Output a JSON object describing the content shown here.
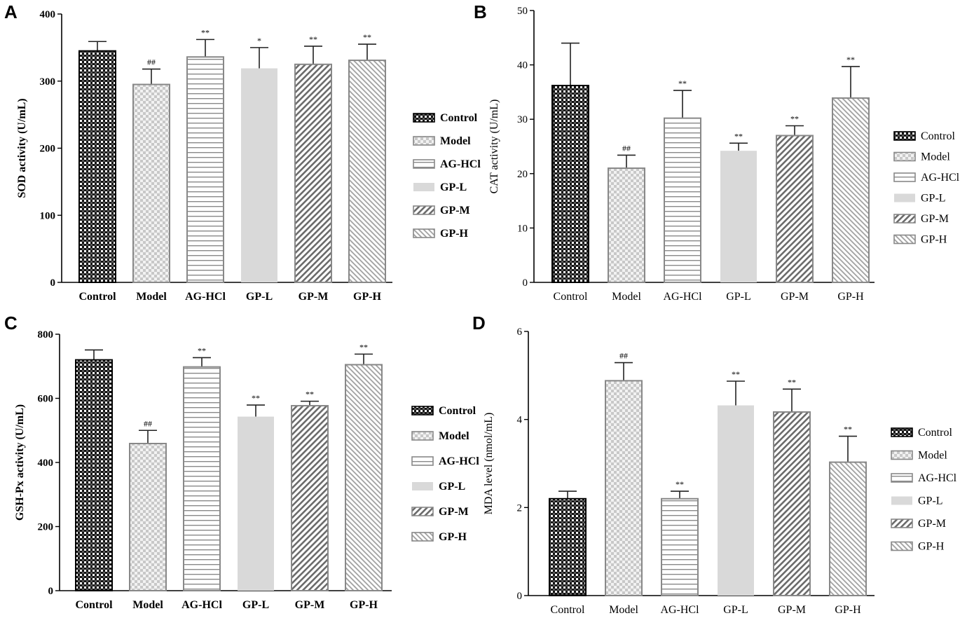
{
  "colors": {
    "Control": "#1a1a1a",
    "Model": "#a8a8a8",
    "AG-HCl": "#9a9a9a",
    "GP-L": "#d9d9d9",
    "GP-M": "#7a7a7a",
    "GP-H": "#b5b5b5"
  },
  "chart_data": [
    {
      "type": "bar",
      "panel": "A",
      "categories": [
        "Control",
        "Model",
        "AG-HCl",
        "GP-L",
        "GP-M",
        "GP-H"
      ],
      "values": [
        345,
        295,
        336,
        319,
        325,
        331
      ],
      "errors": [
        14,
        23,
        26,
        31,
        27,
        24
      ],
      "annotations": [
        "",
        "##",
        "**",
        "*",
        "**",
        "**"
      ],
      "ylabel": "SOD activity (U/mL)",
      "ylim": [
        0,
        400
      ],
      "yticks": [
        0,
        100,
        200,
        300,
        400
      ],
      "legend": [
        "Control",
        "Model",
        "AG-HCl",
        "GP-L",
        "GP-M",
        "GP-H"
      ],
      "bold_labels": true
    },
    {
      "type": "bar",
      "panel": "B",
      "categories": [
        "Control",
        "Model",
        "AG-HCl",
        "GP-L",
        "GP-M",
        "GP-H"
      ],
      "values": [
        36.2,
        21.0,
        30.2,
        24.2,
        27.0,
        33.9
      ],
      "errors": [
        7.8,
        2.4,
        5.1,
        1.4,
        1.8,
        5.8
      ],
      "annotations": [
        "",
        "##",
        "**",
        "**",
        "**",
        "**"
      ],
      "ylabel": "CAT activity (U/mL)",
      "ylim": [
        0,
        50
      ],
      "yticks": [
        0,
        10,
        20,
        30,
        40,
        50
      ],
      "legend": [
        "Control",
        "Model",
        "AG-HCl",
        "GP-L",
        "GP-M",
        "GP-H"
      ],
      "bold_labels": false
    },
    {
      "type": "bar",
      "panel": "C",
      "categories": [
        "Control",
        "Model",
        "AG-HCl",
        "GP-L",
        "GP-M",
        "GP-H"
      ],
      "values": [
        720,
        459,
        698,
        543,
        577,
        705
      ],
      "errors": [
        31,
        41,
        29,
        36,
        14,
        33
      ],
      "annotations": [
        "",
        "##",
        "**",
        "**",
        "**",
        "**"
      ],
      "ylabel": "GSH-Px activity (U/mL)",
      "ylim": [
        0,
        800
      ],
      "yticks": [
        0,
        200,
        400,
        600,
        800
      ],
      "legend": [
        "Control",
        "Model",
        "AG-HCl",
        "GP-L",
        "GP-M",
        "GP-H"
      ],
      "bold_labels": true
    },
    {
      "type": "bar",
      "panel": "D",
      "categories": [
        "Control",
        "Model",
        "AG-HCl",
        "GP-L",
        "GP-M",
        "GP-H"
      ],
      "values": [
        2.2,
        4.88,
        2.2,
        4.32,
        4.17,
        3.03
      ],
      "errors": [
        0.17,
        0.41,
        0.17,
        0.55,
        0.52,
        0.59
      ],
      "annotations": [
        "",
        "##",
        "**",
        "**",
        "**",
        "**"
      ],
      "ylabel": "MDA level (nmol/mL)",
      "ylim": [
        0,
        6
      ],
      "yticks": [
        0,
        2,
        4,
        6
      ],
      "legend": [
        "Control",
        "Model",
        "AG-HCl",
        "GP-L",
        "GP-M",
        "GP-H"
      ],
      "bold_labels": false
    }
  ]
}
